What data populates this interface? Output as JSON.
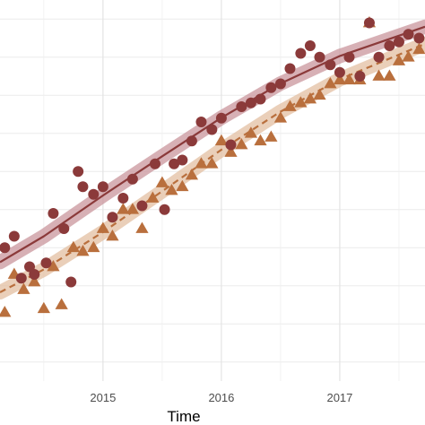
{
  "chart_data": {
    "type": "scatter",
    "xlabel": "Time",
    "ylabel": "",
    "x_ticks": [
      {
        "value": 2015,
        "label": "2015"
      },
      {
        "value": 2016,
        "label": "2016"
      },
      {
        "value": 2017,
        "label": "2017"
      }
    ],
    "xlim": [
      2014.13,
      2017.72
    ],
    "ylim": [
      0.05,
      1.05
    ],
    "grid": true,
    "legend": "none",
    "series": [
      {
        "marker": "circle",
        "color": "#8b3a3a",
        "line_style": "solid",
        "ribbon_color": "#c9959c",
        "points": [
          [
            2014.17,
            0.4
          ],
          [
            2014.25,
            0.43
          ],
          [
            2014.31,
            0.32
          ],
          [
            2014.38,
            0.35
          ],
          [
            2014.42,
            0.33
          ],
          [
            2014.52,
            0.36
          ],
          [
            2014.58,
            0.49
          ],
          [
            2014.67,
            0.45
          ],
          [
            2014.73,
            0.31
          ],
          [
            2014.79,
            0.6
          ],
          [
            2014.83,
            0.56
          ],
          [
            2014.92,
            0.54
          ],
          [
            2015.0,
            0.56
          ],
          [
            2015.08,
            0.48
          ],
          [
            2015.17,
            0.53
          ],
          [
            2015.25,
            0.58
          ],
          [
            2015.33,
            0.51
          ],
          [
            2015.44,
            0.62
          ],
          [
            2015.52,
            0.5
          ],
          [
            2015.6,
            0.62
          ],
          [
            2015.67,
            0.63
          ],
          [
            2015.75,
            0.68
          ],
          [
            2015.83,
            0.73
          ],
          [
            2015.92,
            0.71
          ],
          [
            2016.0,
            0.74
          ],
          [
            2016.08,
            0.67
          ],
          [
            2016.17,
            0.77
          ],
          [
            2016.25,
            0.78
          ],
          [
            2016.33,
            0.79
          ],
          [
            2016.42,
            0.82
          ],
          [
            2016.5,
            0.83
          ],
          [
            2016.58,
            0.87
          ],
          [
            2016.67,
            0.91
          ],
          [
            2016.75,
            0.93
          ],
          [
            2016.83,
            0.9
          ],
          [
            2016.92,
            0.88
          ],
          [
            2017.0,
            0.86
          ],
          [
            2017.08,
            0.9
          ],
          [
            2017.17,
            0.85
          ],
          [
            2017.25,
            0.99
          ],
          [
            2017.33,
            0.9
          ],
          [
            2017.42,
            0.93
          ],
          [
            2017.5,
            0.94
          ],
          [
            2017.58,
            0.96
          ],
          [
            2017.67,
            0.95
          ]
        ],
        "trend": [
          [
            2014.13,
            0.362
          ],
          [
            2014.5,
            0.43
          ],
          [
            2015.0,
            0.537
          ],
          [
            2015.5,
            0.64
          ],
          [
            2016.0,
            0.741
          ],
          [
            2016.5,
            0.831
          ],
          [
            2017.0,
            0.903
          ],
          [
            2017.72,
            0.98
          ]
        ]
      },
      {
        "marker": "triangle",
        "color": "#b96f3d",
        "line_style": "dashed",
        "ribbon_color": "#e3bfa2",
        "points": [
          [
            2014.17,
            0.23
          ],
          [
            2014.25,
            0.33
          ],
          [
            2014.33,
            0.29
          ],
          [
            2014.42,
            0.31
          ],
          [
            2014.5,
            0.24
          ],
          [
            2014.58,
            0.35
          ],
          [
            2014.65,
            0.25
          ],
          [
            2014.75,
            0.4
          ],
          [
            2014.83,
            0.39
          ],
          [
            2014.92,
            0.4
          ],
          [
            2015.0,
            0.45
          ],
          [
            2015.08,
            0.43
          ],
          [
            2015.17,
            0.5
          ],
          [
            2015.25,
            0.5
          ],
          [
            2015.33,
            0.45
          ],
          [
            2015.42,
            0.53
          ],
          [
            2015.5,
            0.57
          ],
          [
            2015.58,
            0.55
          ],
          [
            2015.67,
            0.56
          ],
          [
            2015.75,
            0.59
          ],
          [
            2015.83,
            0.62
          ],
          [
            2015.92,
            0.62
          ],
          [
            2016.0,
            0.68
          ],
          [
            2016.08,
            0.65
          ],
          [
            2016.17,
            0.67
          ],
          [
            2016.25,
            0.7
          ],
          [
            2016.33,
            0.68
          ],
          [
            2016.42,
            0.69
          ],
          [
            2016.5,
            0.74
          ],
          [
            2016.58,
            0.77
          ],
          [
            2016.67,
            0.78
          ],
          [
            2016.75,
            0.79
          ],
          [
            2016.83,
            0.8
          ],
          [
            2016.92,
            0.83
          ],
          [
            2017.0,
            0.84
          ],
          [
            2017.08,
            0.84
          ],
          [
            2017.17,
            0.84
          ],
          [
            2017.25,
            0.99
          ],
          [
            2017.33,
            0.85
          ],
          [
            2017.42,
            0.85
          ],
          [
            2017.5,
            0.89
          ],
          [
            2017.58,
            0.9
          ],
          [
            2017.67,
            0.92
          ]
        ],
        "trend": [
          [
            2014.13,
            0.283
          ],
          [
            2014.5,
            0.343
          ],
          [
            2015.0,
            0.441
          ],
          [
            2015.5,
            0.548
          ],
          [
            2016.0,
            0.657
          ],
          [
            2016.5,
            0.757
          ],
          [
            2017.0,
            0.842
          ],
          [
            2017.72,
            0.935
          ]
        ]
      }
    ]
  }
}
